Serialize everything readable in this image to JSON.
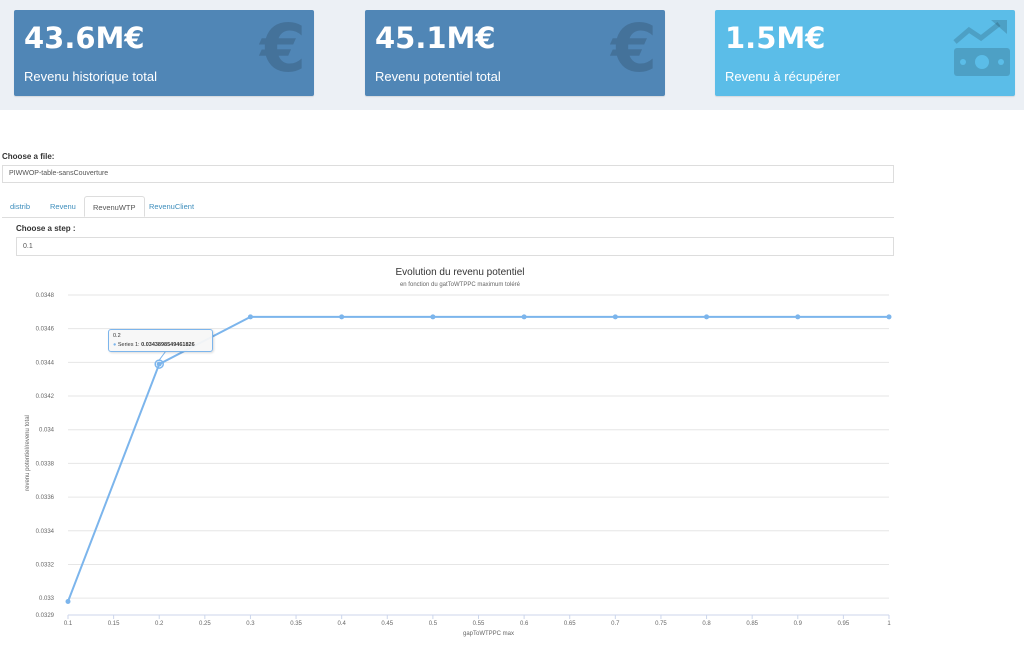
{
  "colors": {
    "kpi1_bg": "#5086b6",
    "kpi2_bg": "#5086b6",
    "kpi3_bg": "#5bbde8",
    "series": "#7cb5ec"
  },
  "kpis": [
    {
      "value": "43.6M€",
      "label": "Revenu historique total",
      "icon": "euro-icon"
    },
    {
      "value": "45.1M€",
      "label": "Revenu potentiel total",
      "icon": "euro-icon"
    },
    {
      "value": "1.5M€",
      "label": "Revenu à récupérer",
      "icon": "money-trend-icon"
    }
  ],
  "file": {
    "label": "Choose a file:",
    "value": "PIWWOP-table-sansCouverture"
  },
  "tabs": [
    {
      "label": "distrib",
      "active": false
    },
    {
      "label": "Revenu",
      "active": false
    },
    {
      "label": "RevenuWTP",
      "active": true
    },
    {
      "label": "RevenuClient",
      "active": false
    }
  ],
  "step": {
    "label": "Choose a step :",
    "value": "0.1"
  },
  "chart_data": {
    "type": "line",
    "title": "Evolution du revenu potentiel",
    "subtitle": "en fonction du gatToWTPPC maximum toléré",
    "xlabel": "gapToWTPPC max",
    "ylabel": "revenu potentiel/revenu total",
    "xlim": [
      0.1,
      1
    ],
    "ylim": [
      0.0329,
      0.0348
    ],
    "x_ticks": [
      "0.1",
      "0.15",
      "0.2",
      "0.25",
      "0.3",
      "0.35",
      "0.4",
      "0.45",
      "0.5",
      "0.55",
      "0.6",
      "0.65",
      "0.7",
      "0.75",
      "0.8",
      "0.85",
      "0.9",
      "0.95",
      "1"
    ],
    "y_ticks": [
      "0.0329",
      "0.033",
      "0.0332",
      "0.0334",
      "0.0336",
      "0.0338",
      "0.034",
      "0.0342",
      "0.0344",
      "0.0346",
      "0.0348"
    ],
    "grid": true,
    "series": [
      {
        "name": "Series 1",
        "x": [
          0.1,
          0.2,
          0.3,
          0.4,
          0.5,
          0.6,
          0.7,
          0.8,
          0.9,
          1.0
        ],
        "values": [
          0.03298,
          0.034389854946,
          0.03467,
          0.03467,
          0.03467,
          0.03467,
          0.03467,
          0.03467,
          0.03467,
          0.03467
        ]
      }
    ],
    "tooltip": {
      "x": "0.2",
      "series": "Series 1:",
      "value": "0.0343898549461826"
    }
  }
}
